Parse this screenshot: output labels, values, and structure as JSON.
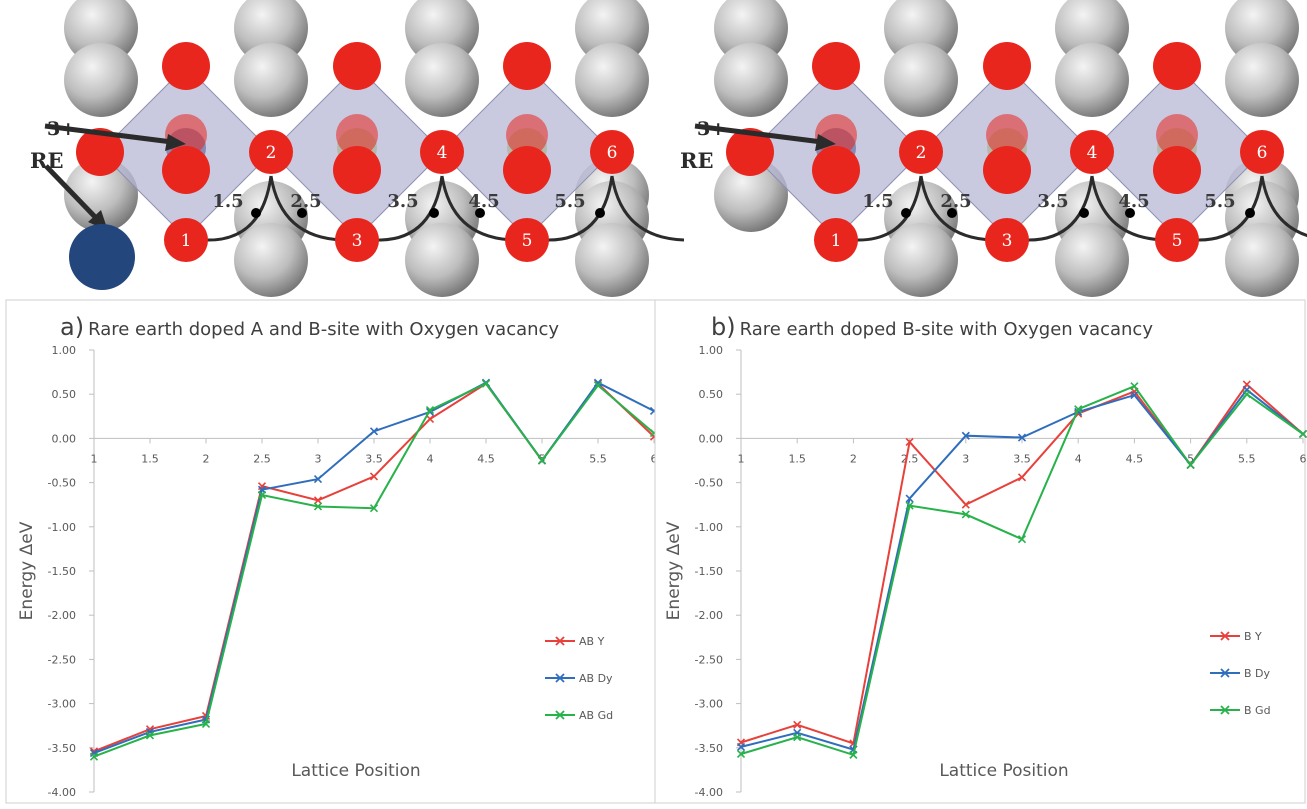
{
  "structure_panels": [
    {
      "dopant_charge": "3+",
      "dopant_label": "RE",
      "numbered_sites": [
        "1",
        "2",
        "3",
        "4",
        "5",
        "6"
      ],
      "hop_labels": [
        "1.5",
        "2.5",
        "3.5",
        "4.5",
        "5.5"
      ],
      "show_A_site_dopant": true
    },
    {
      "dopant_charge": "3+",
      "dopant_label": "RE",
      "numbered_sites": [
        "1",
        "2",
        "3",
        "4",
        "5",
        "6"
      ],
      "hop_labels": [
        "1.5",
        "2.5",
        "3.5",
        "4.5",
        "5.5"
      ],
      "show_A_site_dopant": false
    }
  ],
  "colors": {
    "oxygen": "#e8261e",
    "cation": "#b9b9b9",
    "dopant": "#23467d",
    "octahedron": "#b4b6d2",
    "path": "#2b2b2b"
  },
  "chart_data": [
    {
      "type": "line",
      "panel_letter": "a)",
      "title": "Rare earth doped A and B-site with Oxygen vacancy",
      "xlabel": "Lattice Position",
      "ylabel": "Energy ΔeV",
      "x": [
        1,
        1.5,
        2,
        2.5,
        3,
        3.5,
        4,
        4.5,
        5,
        5.5,
        6
      ],
      "x_tick_labels": [
        "1",
        "1.5",
        "2",
        "2.5",
        "3",
        "3.5",
        "4",
        "4.5",
        "5",
        "5.5",
        "6"
      ],
      "ylim": [
        -4.0,
        1.0
      ],
      "y_tick_labels": [
        "1.00",
        "0.50",
        "0.00",
        "-0.50",
        "-1.00",
        "-1.50",
        "-2.00",
        "-2.50",
        "-3.00",
        "-3.50",
        "-4.00"
      ],
      "legend_position": "bottom-right",
      "series": [
        {
          "name": "AB Y",
          "color": "#e8403a",
          "values": [
            -3.54,
            -3.29,
            -3.14,
            -0.54,
            -0.7,
            -0.43,
            0.22,
            0.62,
            -0.25,
            0.62,
            0.02
          ]
        },
        {
          "name": "AB Dy",
          "color": "#2f6dbd",
          "values": [
            -3.56,
            -3.32,
            -3.18,
            -0.58,
            -0.46,
            0.08,
            0.3,
            0.63,
            -0.25,
            0.63,
            0.31
          ]
        },
        {
          "name": "AB Gd",
          "color": "#27b24a",
          "values": [
            -3.6,
            -3.36,
            -3.23,
            -0.64,
            -0.77,
            -0.79,
            0.32,
            0.62,
            -0.25,
            0.6,
            0.06
          ]
        }
      ]
    },
    {
      "type": "line",
      "panel_letter": "b)",
      "title": "Rare earth doped B-site with Oxygen vacancy",
      "xlabel": "Lattice Position",
      "ylabel": "Energy ΔeV",
      "x": [
        1,
        1.5,
        2,
        2.5,
        3,
        3.5,
        4,
        4.5,
        5,
        5.5,
        6
      ],
      "x_tick_labels": [
        "1",
        "1.5",
        "2",
        "2.5",
        "3",
        "3.5",
        "4",
        "4.5",
        "5",
        "5.5",
        "6"
      ],
      "ylim": [
        -4.0,
        1.0
      ],
      "y_tick_labels": [
        "1.00",
        "0.50",
        "0.00",
        "-0.50",
        "-1.00",
        "-1.50",
        "-2.00",
        "-2.50",
        "-3.00",
        "-3.50",
        "-4.00"
      ],
      "legend_position": "bottom-right",
      "series": [
        {
          "name": "B Y",
          "color": "#e8403a",
          "values": [
            -3.44,
            -3.24,
            -3.45,
            -0.04,
            -0.75,
            -0.44,
            0.28,
            0.53,
            -0.3,
            0.61,
            0.05
          ]
        },
        {
          "name": "B Dy",
          "color": "#2f6dbd",
          "values": [
            -3.49,
            -3.33,
            -3.52,
            -0.68,
            0.03,
            0.01,
            0.3,
            0.49,
            -0.3,
            0.55,
            0.05
          ]
        },
        {
          "name": "B Gd",
          "color": "#27b24a",
          "values": [
            -3.57,
            -3.38,
            -3.58,
            -0.76,
            -0.86,
            -1.14,
            0.33,
            0.59,
            -0.3,
            0.5,
            0.05
          ]
        }
      ]
    }
  ]
}
